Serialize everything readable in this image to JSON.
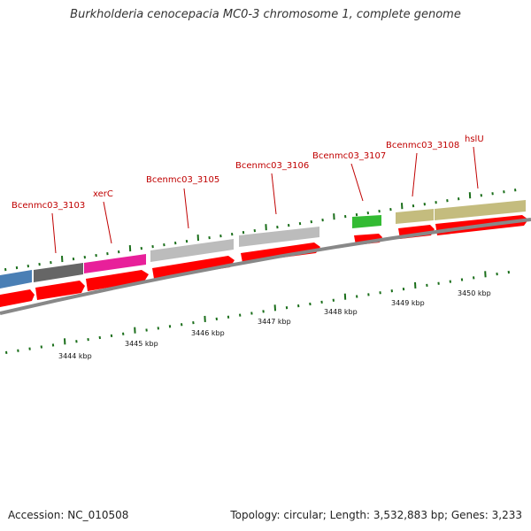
{
  "title": "Burkholderia cenocepacia MC0-3 chromosome 1, complete genome",
  "accession": "Accession: NC_010508",
  "summary": "Topology: circular; Length: 3,532,883 bp; Genes: 3,233",
  "gene_labels": [
    "Bcenmc03_3103",
    "xerC",
    "Bcenmc03_3105",
    "Bcenmc03_3106",
    "Bcenmc03_3107",
    "Bcenmc03_3108",
    "hslU"
  ],
  "kbp_labels": [
    "3444 kbp",
    "3445 kbp",
    "3446 kbp",
    "3447 kbp",
    "3448 kbp",
    "3449 kbp",
    "3450 kbp"
  ],
  "colors": {
    "gene_label": "#c00000",
    "cds_arrow": "#ff0000",
    "backbone": "#888888",
    "tick": "#1a6e1a",
    "feature_blue": "#4a7fb5",
    "feature_darkgray": "#666666",
    "feature_magenta": "#e8209a",
    "feature_lightgray": "#b8b8b8",
    "feature_green": "#33bb33",
    "feature_khaki": "#c4bc7e"
  }
}
